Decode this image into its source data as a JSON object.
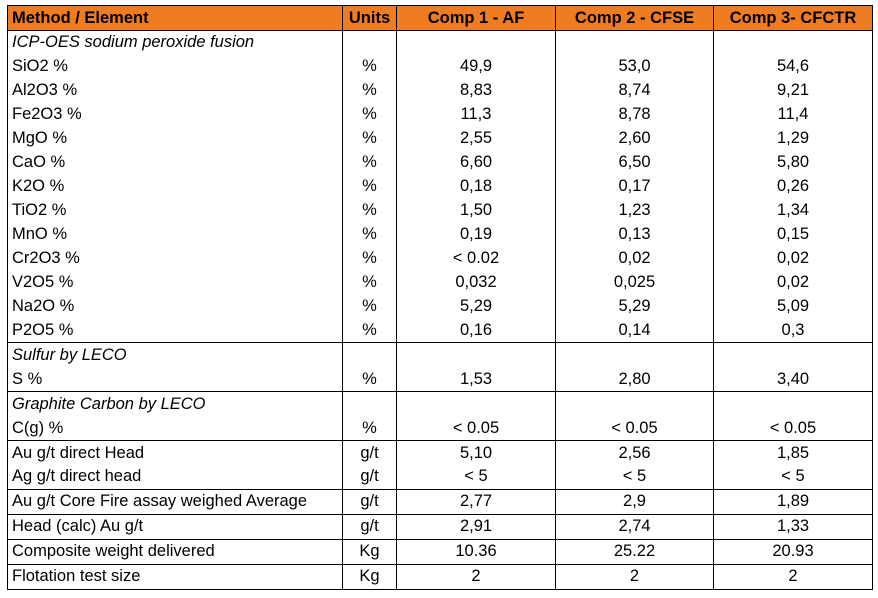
{
  "table": {
    "headers": [
      "Method / Element",
      "Units",
      "Comp 1 - AF",
      "Comp 2 - CFSE",
      "Comp 3- CFCTR"
    ],
    "rows": [
      {
        "type": "section",
        "label": "ICP-OES sodium peroxide fusion",
        "start": true
      },
      {
        "type": "data",
        "element": "SiO2 %",
        "unit": "%",
        "values": [
          "49,9",
          "53,0",
          "54,6"
        ]
      },
      {
        "type": "data",
        "element": "Al2O3 %",
        "unit": "%",
        "values": [
          "8,83",
          "8,74",
          "9,21"
        ]
      },
      {
        "type": "data",
        "element": "Fe2O3 %",
        "unit": "%",
        "values": [
          "11,3",
          "8,78",
          "11,4"
        ]
      },
      {
        "type": "data",
        "element": "MgO %",
        "unit": "%",
        "values": [
          "2,55",
          "2,60",
          "1,29"
        ]
      },
      {
        "type": "data",
        "element": "CaO %",
        "unit": "%",
        "values": [
          "6,60",
          "6,50",
          "5,80"
        ]
      },
      {
        "type": "data",
        "element": "K2O %",
        "unit": "%",
        "values": [
          "0,18",
          "0,17",
          "0,26"
        ]
      },
      {
        "type": "data",
        "element": "TiO2 %",
        "unit": "%",
        "values": [
          "1,50",
          "1,23",
          "1,34"
        ]
      },
      {
        "type": "data",
        "element": "MnO %",
        "unit": "%",
        "values": [
          "0,19",
          "0,13",
          "0,15"
        ]
      },
      {
        "type": "data",
        "element": "Cr2O3 %",
        "unit": "%",
        "values": [
          "< 0.02",
          "0,02",
          "0,02"
        ]
      },
      {
        "type": "data",
        "element": "V2O5 %",
        "unit": "%",
        "values": [
          "0,032",
          "0,025",
          "0,02"
        ]
      },
      {
        "type": "data",
        "element": "Na2O %",
        "unit": "%",
        "values": [
          "5,29",
          "5,29",
          "5,09"
        ]
      },
      {
        "type": "data",
        "element": "P2O5 %",
        "unit": "%",
        "values": [
          "0,16",
          "0,14",
          "0,3"
        ]
      },
      {
        "type": "section",
        "label": "Sulfur by LECO",
        "start": true
      },
      {
        "type": "data",
        "element": "S %",
        "unit": "%",
        "values": [
          "1,53",
          "2,80",
          "3,40"
        ]
      },
      {
        "type": "section",
        "label": "Graphite Carbon by LECO",
        "start": true
      },
      {
        "type": "data",
        "element": "C(g) %",
        "unit": "%",
        "values": [
          "< 0.05",
          "< 0.05",
          "< 0.05"
        ]
      },
      {
        "type": "data",
        "element": "Au g/t direct Head",
        "unit": "g/t",
        "values": [
          "5,10",
          "2,56",
          "1,85"
        ],
        "start": true
      },
      {
        "type": "data",
        "element": "Ag g/t direct head",
        "unit": "g/t",
        "values": [
          "< 5",
          "< 5",
          "< 5"
        ]
      },
      {
        "type": "data",
        "element": "Au g/t Core Fire assay weighed Average",
        "unit": "g/t",
        "values": [
          "2,77",
          "2,9",
          "1,89"
        ],
        "boxed": true
      },
      {
        "type": "data",
        "element": "Head (calc) Au g/t",
        "unit": "g/t",
        "values": [
          "2,91",
          "2,74",
          "1,33"
        ],
        "boxed": true
      },
      {
        "type": "data",
        "element": "Composite weight delivered",
        "unit": "Kg",
        "values": [
          "10.36",
          "25.22",
          "20.93"
        ],
        "boxed": true
      },
      {
        "type": "data",
        "element": "Flotation test size",
        "unit": "Kg",
        "values": [
          "2",
          "2",
          "2"
        ],
        "boxed": true
      }
    ]
  },
  "colors": {
    "header_bg": "#f07c22",
    "border": "#000000"
  }
}
